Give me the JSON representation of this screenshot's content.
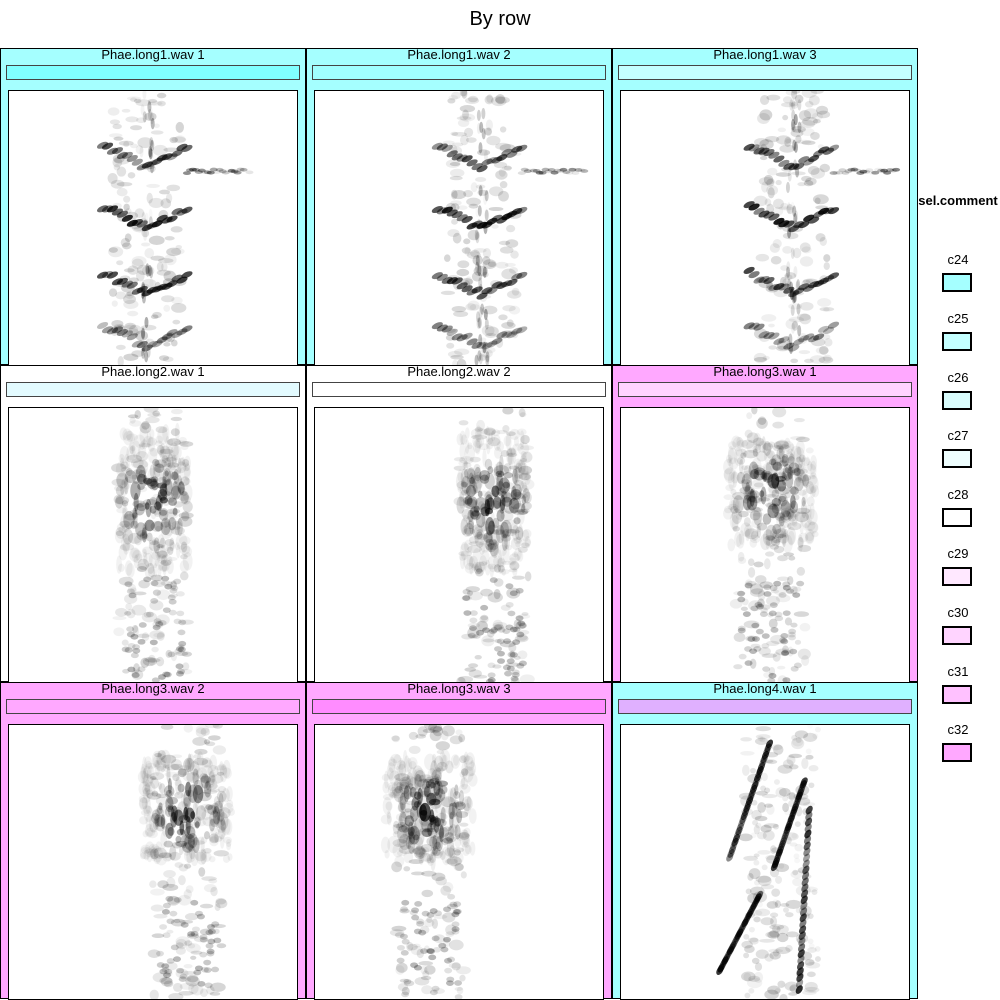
{
  "chart_data": {
    "type": "heatmap",
    "title": "By row",
    "legend": {
      "title": "sel.comment",
      "position": "right",
      "items": [
        {
          "label": "c24",
          "color": "#a5ffff"
        },
        {
          "label": "c25",
          "color": "#c4ffff"
        },
        {
          "label": "c26",
          "color": "#d9fdfd"
        },
        {
          "label": "c27",
          "color": "#eefefe"
        },
        {
          "label": "c28",
          "color": "#ffffff"
        },
        {
          "label": "c29",
          "color": "#ffe8ff"
        },
        {
          "label": "c30",
          "color": "#ffd4ff"
        },
        {
          "label": "c31",
          "color": "#ffc1ff"
        },
        {
          "label": "c32",
          "color": "#ffa8ff"
        }
      ]
    },
    "panels": [
      {
        "label": "Phae.long1.wav 1",
        "bg": "#a5ffff",
        "bar": "#80ffff",
        "pattern": "harmonic",
        "center": 0.48
      },
      {
        "label": "Phae.long1.wav 2",
        "bg": "#a5ffff",
        "bar": "#a0ffff",
        "pattern": "harmonic",
        "center": 0.58
      },
      {
        "label": "Phae.long1.wav 3",
        "bg": "#a5ffff",
        "bar": "#c4ffff",
        "pattern": "harmonic",
        "center": 0.6
      },
      {
        "label": "Phae.long2.wav 1",
        "bg": "#ffffff",
        "bar": "#e3fbff",
        "pattern": "burst",
        "center": 0.5
      },
      {
        "label": "Phae.long2.wav 2",
        "bg": "#ffffff",
        "bar": "#ffffff",
        "pattern": "burst",
        "center": 0.62
      },
      {
        "label": "Phae.long3.wav 1",
        "bg": "#ffa8ff",
        "bar": "#ffd4ff",
        "pattern": "dense",
        "center": 0.52
      },
      {
        "label": "Phae.long3.wav 2",
        "bg": "#ffa8ff",
        "bar": "#ffa8ff",
        "pattern": "dense",
        "center": 0.62
      },
      {
        "label": "Phae.long3.wav 3",
        "bg": "#ffa8ff",
        "bar": "#ff8cff",
        "pattern": "dense",
        "center": 0.4
      },
      {
        "label": "Phae.long4.wav 1",
        "bg": "#a5ffff",
        "bar": "#e0b0ff",
        "pattern": "strokes",
        "center": 0.55
      }
    ]
  }
}
